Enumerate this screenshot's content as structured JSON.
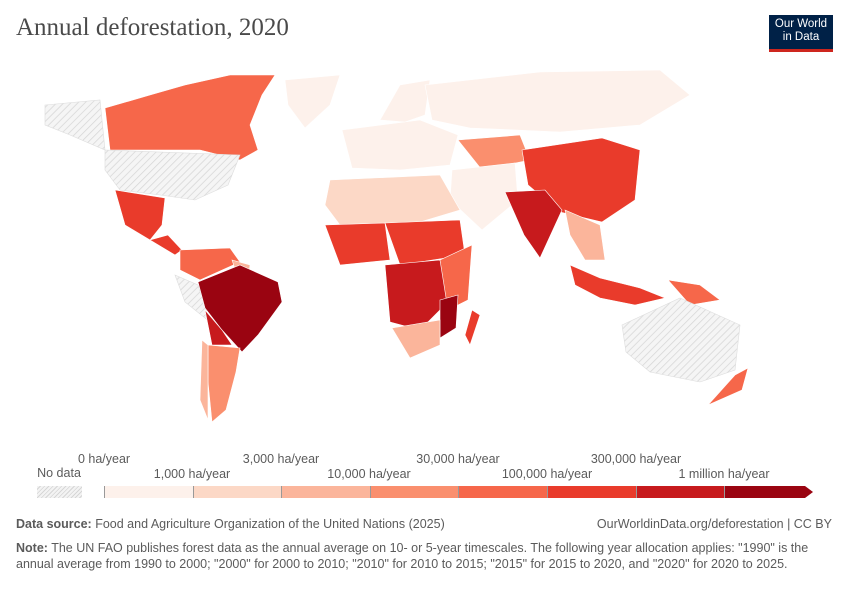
{
  "title": "Annual deforestation, 2020",
  "logo": {
    "line1": "Our World",
    "line2": "in Data"
  },
  "legend": {
    "no_data": "No data",
    "upper_labels": [
      "0 ha/year",
      "3,000 ha/year",
      "30,000 ha/year",
      "300,000 ha/year"
    ],
    "lower_labels": [
      "1,000 ha/year",
      "10,000 ha/year",
      "100,000 ha/year",
      "1 million ha/year"
    ],
    "colors": [
      "#fdf1eb",
      "#fcd8c6",
      "#fbb59b",
      "#fa8f6e",
      "#f6674a",
      "#e93b2b",
      "#c71a1d",
      "#9a0411"
    ]
  },
  "map_regions": [
    {
      "name": "canada",
      "bin": 4
    },
    {
      "name": "alaska",
      "bin": -1
    },
    {
      "name": "usa",
      "bin": -1
    },
    {
      "name": "greenland",
      "bin": 0
    },
    {
      "name": "mexico",
      "bin": 5
    },
    {
      "name": "central-america",
      "bin": 5
    },
    {
      "name": "colombia-venezuela",
      "bin": 4
    },
    {
      "name": "guianas",
      "bin": 2
    },
    {
      "name": "peru",
      "bin": -1
    },
    {
      "name": "brazil",
      "bin": 7
    },
    {
      "name": "bolivia-paraguay",
      "bin": 6
    },
    {
      "name": "argentina",
      "bin": 3
    },
    {
      "name": "chile",
      "bin": 2
    },
    {
      "name": "europe",
      "bin": 0
    },
    {
      "name": "scandinavia",
      "bin": 0
    },
    {
      "name": "russia",
      "bin": 0
    },
    {
      "name": "kazakhstan",
      "bin": 3
    },
    {
      "name": "middle-east",
      "bin": 0
    },
    {
      "name": "china",
      "bin": 5
    },
    {
      "name": "india",
      "bin": 6
    },
    {
      "name": "southeast-asia",
      "bin": 2
    },
    {
      "name": "indonesia",
      "bin": 5
    },
    {
      "name": "papua",
      "bin": 4
    },
    {
      "name": "australia",
      "bin": -1
    },
    {
      "name": "new-zealand",
      "bin": 4
    },
    {
      "name": "north-africa",
      "bin": 1
    },
    {
      "name": "west-africa",
      "bin": 5
    },
    {
      "name": "central-africa",
      "bin": 5
    },
    {
      "name": "congo-angola",
      "bin": 6
    },
    {
      "name": "east-africa",
      "bin": 4
    },
    {
      "name": "mozambique",
      "bin": 7
    },
    {
      "name": "southern-africa",
      "bin": 2
    },
    {
      "name": "madagascar",
      "bin": 5
    }
  ],
  "footer": {
    "source_label": "Data source:",
    "source": "Food and Agriculture Organization of the United Nations (2025)",
    "url": "OurWorldinData.org/deforestation | CC BY",
    "note_label": "Note:",
    "note": "The UN FAO publishes forest data as the annual average on 10- or 5-year timescales. The following year allocation applies: \"1990\" is the annual average from 1990 to 2000; \"2000\" for 2000 to 2010; \"2010\" for 2010 to 2015; \"2015\" for 2015 to 2020, and \"2020\" for 2020 to 2025."
  }
}
